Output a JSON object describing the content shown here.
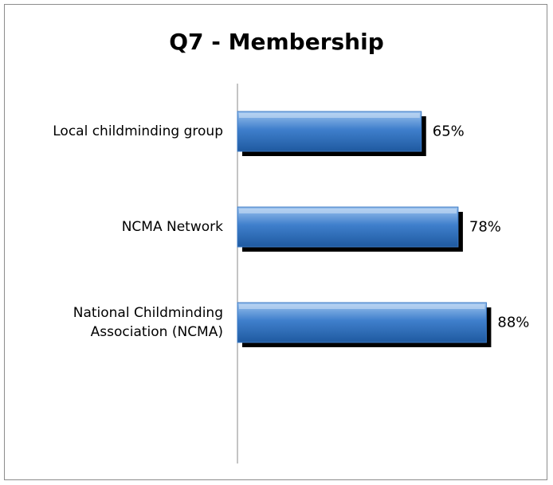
{
  "chart_data": {
    "type": "bar",
    "orientation": "horizontal",
    "title": "Q7 - Membership",
    "categories": [
      "Local childminding group",
      "NCMA Network",
      "National Childminding Association (NCMA)"
    ],
    "values": [
      65,
      78,
      88
    ],
    "value_labels": [
      "65%",
      "78%",
      "88%"
    ],
    "color": "#3a78c4",
    "xlim": [
      0,
      100
    ]
  }
}
